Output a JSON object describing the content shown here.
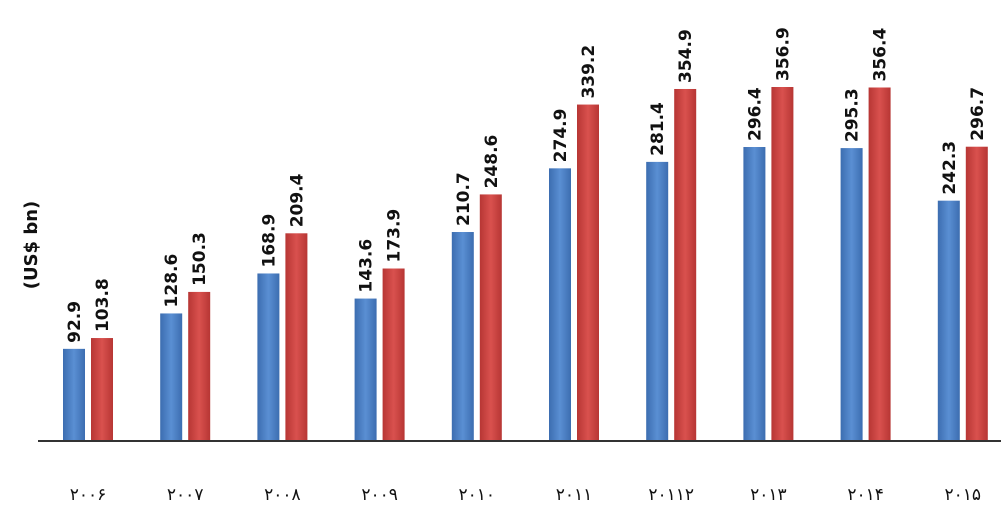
{
  "chart_data": {
    "type": "bar",
    "ylabel": "(US$ bn)",
    "categories": [
      "٢٠٠۶",
      "٢٠٠٧",
      "٢٠٠٨",
      "٢٠٠٩",
      "٢٠١٠",
      "٢٠١١",
      "٢٠١١٢",
      "٢٠١٣",
      "٢٠١۴",
      "٢٠١۵"
    ],
    "series": [
      {
        "values": [
          92.9,
          128.6,
          168.9,
          143.6,
          210.7,
          274.9,
          281.4,
          296.4,
          295.3,
          242.3
        ],
        "color": "#4a7ec2"
      },
      {
        "values": [
          103.8,
          150.3,
          209.4,
          173.9,
          248.6,
          339.2,
          354.9,
          356.9,
          356.4,
          296.7
        ],
        "color": "#c9413f"
      }
    ],
    "ylim": [
      0,
      356.9
    ],
    "grid": false,
    "legend": "none"
  }
}
